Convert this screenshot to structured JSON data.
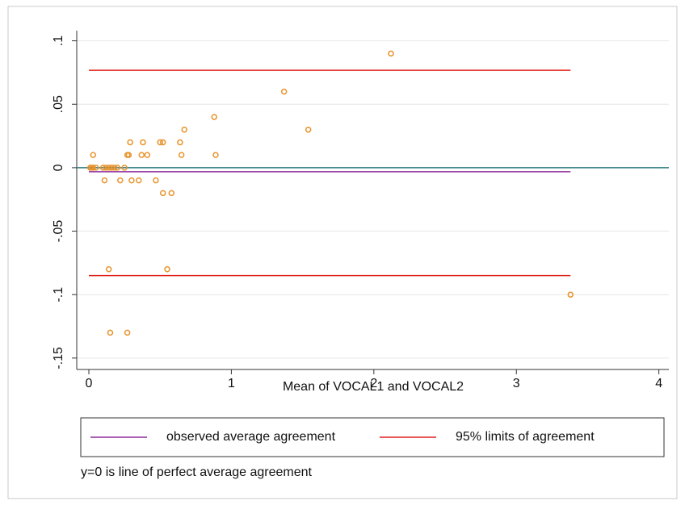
{
  "chart_data": {
    "type": "scatter",
    "x_label": "Mean of VOCAL1 and VOCAL2",
    "note": "y=0 is line of perfect average agreement",
    "xlim": [
      -0.085,
      4.07
    ],
    "ylim": [
      -0.159,
      0.108
    ],
    "xticks": [
      0,
      1,
      2,
      3,
      4
    ],
    "yticks": [
      {
        "value": 0.1,
        "label": ".1"
      },
      {
        "value": 0.05,
        "label": ".05"
      },
      0,
      {
        "value": -0.05,
        "label": "-.05"
      },
      {
        "value": -0.1,
        "label": "-.1"
      },
      {
        "value": -0.15,
        "label": "-.15"
      }
    ],
    "grid": true,
    "point_color": "#e8922a",
    "x": [
      2.12,
      1.37,
      1.54,
      0.88,
      0.89,
      0.67,
      0.64,
      0.65,
      0.5,
      0.52,
      0.29,
      0.28,
      0.27,
      0.38,
      0.37,
      0.41,
      0.03,
      0.01,
      0.02,
      0.03,
      0.05,
      0.1,
      0.12,
      0.14,
      0.16,
      0.18,
      0.2,
      0.25,
      0.11,
      0.22,
      0.3,
      0.35,
      0.47,
      0.52,
      0.58,
      0.14,
      0.55,
      0.15,
      0.27,
      3.38
    ],
    "values": [
      0.09,
      0.06,
      0.03,
      0.04,
      0.01,
      0.03,
      0.02,
      0.01,
      0.02,
      0.02,
      0.02,
      0.01,
      0.01,
      0.02,
      0.01,
      0.01,
      0.01,
      0,
      0,
      0,
      0,
      0,
      0,
      0,
      0,
      0,
      0,
      0,
      -0.01,
      -0.01,
      -0.01,
      -0.01,
      -0.01,
      -0.02,
      -0.02,
      -0.08,
      -0.08,
      -0.13,
      -0.13,
      -0.1
    ],
    "zero_line": {
      "value": 0,
      "color": "#2b7a80"
    },
    "hline_x": [
      0,
      3.38
    ],
    "hlines": [
      {
        "name": "observed average agreement",
        "color": "#8e2c9c",
        "values": [
          -0.0032
        ]
      },
      {
        "name": "95% limits of agreement",
        "color": "#e0201b",
        "values": [
          0.0768,
          -0.085
        ]
      }
    ]
  }
}
